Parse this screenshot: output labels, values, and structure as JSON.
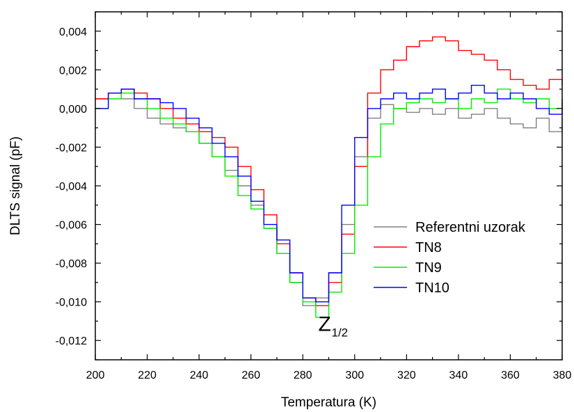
{
  "chart_data": {
    "type": "line",
    "xlabel": "Temperatura (K)",
    "ylabel": "DLTS signal (pF)",
    "xlim": [
      200,
      380
    ],
    "ylim": [
      -0.013,
      0.005
    ],
    "x_ticks": [
      200,
      220,
      240,
      260,
      280,
      300,
      320,
      340,
      360,
      380
    ],
    "y_ticks": [
      0.004,
      0.002,
      0.0,
      -0.002,
      -0.004,
      -0.006,
      -0.008,
      -0.01,
      -0.012
    ],
    "y_tick_labels": [
      "0,004",
      "0,002",
      "0,000",
      "-0,002",
      "-0,004",
      "-0,006",
      "-0,008",
      "-0,010",
      "-0,012"
    ],
    "x_tick_labels": [
      "200",
      "220",
      "240",
      "260",
      "280",
      "300",
      "320",
      "340",
      "360",
      "380"
    ],
    "grid": false,
    "legend_position": "right",
    "line_style": "step",
    "annotation": {
      "main": "Z",
      "sub": "1/2",
      "x": 290,
      "y": -0.0115
    },
    "x": [
      200,
      205,
      210,
      215,
      220,
      225,
      230,
      235,
      240,
      245,
      250,
      255,
      260,
      265,
      270,
      275,
      280,
      285,
      290,
      295,
      300,
      305,
      310,
      315,
      320,
      325,
      330,
      335,
      340,
      345,
      350,
      355,
      360,
      365,
      370,
      375,
      380
    ],
    "series": [
      {
        "name": "Referentni uzorak",
        "color": "#808080",
        "values": [
          0.0005,
          0.0008,
          0.0005,
          0.0,
          -0.0005,
          -0.0008,
          -0.001,
          -0.0012,
          -0.0018,
          -0.0025,
          -0.0032,
          -0.004,
          -0.005,
          -0.0062,
          -0.0075,
          -0.009,
          -0.0102,
          -0.0098,
          -0.0085,
          -0.006,
          -0.0025,
          -0.0005,
          0.0002,
          0.0,
          -0.0002,
          0.0,
          -0.0003,
          0.0,
          -0.0005,
          -0.0003,
          0.0,
          -0.0005,
          -0.0008,
          -0.001,
          -0.0005,
          -0.0012,
          -0.0005
        ]
      },
      {
        "name": "TN8",
        "color": "#ff0000",
        "values": [
          0.0005,
          0.0008,
          0.001,
          0.0008,
          0.0005,
          0.0,
          -0.0005,
          -0.0008,
          -0.0012,
          -0.0015,
          -0.002,
          -0.003,
          -0.0042,
          -0.0055,
          -0.007,
          -0.0085,
          -0.0098,
          -0.0102,
          -0.009,
          -0.0065,
          -0.003,
          0.0008,
          0.002,
          0.0025,
          0.0032,
          0.0035,
          0.0037,
          0.0035,
          0.003,
          0.0028,
          0.0025,
          0.002,
          0.0015,
          0.0012,
          0.001,
          0.0015,
          0.0012
        ]
      },
      {
        "name": "TN9",
        "color": "#00ee00",
        "values": [
          0.0,
          0.0005,
          0.0008,
          0.0005,
          0.0,
          -0.0005,
          -0.0008,
          -0.0012,
          -0.0018,
          -0.0025,
          -0.0035,
          -0.0045,
          -0.0052,
          -0.0062,
          -0.0075,
          -0.009,
          -0.01,
          -0.0108,
          -0.0095,
          -0.0075,
          -0.005,
          -0.0025,
          -0.0008,
          0.0,
          0.0003,
          0.0005,
          0.0003,
          0.0005,
          0.0,
          0.0005,
          0.0003,
          0.001,
          0.0005,
          0.0003,
          0.0005,
          0.0,
          0.0003
        ]
      },
      {
        "name": "TN10",
        "color": "#0000ff",
        "values": [
          0.0,
          0.0008,
          0.001,
          0.0005,
          0.0005,
          0.0003,
          0.0,
          -0.0005,
          -0.001,
          -0.0018,
          -0.0025,
          -0.0035,
          -0.0048,
          -0.006,
          -0.0068,
          -0.0085,
          -0.0098,
          -0.01,
          -0.0085,
          -0.005,
          -0.0015,
          0.0,
          0.0005,
          0.0008,
          0.0005,
          0.0008,
          0.001,
          0.0005,
          0.0008,
          0.0012,
          0.0008,
          0.0005,
          0.0008,
          0.0005,
          0.0,
          -0.0003,
          0.0005
        ]
      }
    ]
  }
}
